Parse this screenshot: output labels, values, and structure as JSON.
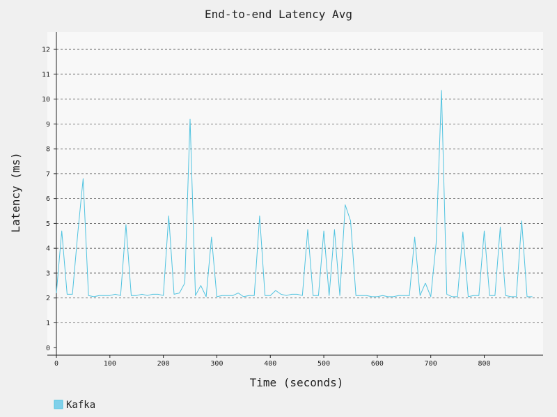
{
  "chart_data": {
    "type": "line",
    "title": "End-to-end Latency Avg",
    "xlabel": "Time (seconds)",
    "ylabel": "Latency (ms)",
    "xlim": [
      0,
      910
    ],
    "ylim": [
      -0.3,
      12.7
    ],
    "x_ticks": [
      0,
      100,
      200,
      300,
      400,
      500,
      600,
      700,
      800
    ],
    "y_ticks": [
      0,
      1,
      2,
      3,
      4,
      5,
      6,
      7,
      8,
      9,
      10,
      11,
      12
    ],
    "grid": true,
    "legend_position": "bottom-left",
    "series": [
      {
        "name": "Kafka",
        "color": "#4fc3e0",
        "x": [
          0,
          10,
          20,
          30,
          40,
          50,
          60,
          70,
          80,
          90,
          100,
          110,
          120,
          130,
          140,
          150,
          160,
          170,
          180,
          190,
          200,
          210,
          220,
          230,
          240,
          250,
          260,
          270,
          280,
          290,
          300,
          310,
          320,
          330,
          340,
          350,
          360,
          370,
          380,
          390,
          400,
          410,
          420,
          430,
          440,
          450,
          460,
          470,
          480,
          490,
          500,
          510,
          520,
          530,
          540,
          550,
          560,
          570,
          580,
          590,
          600,
          610,
          620,
          630,
          640,
          650,
          660,
          670,
          680,
          690,
          700,
          710,
          720,
          730,
          740,
          750,
          760,
          770,
          780,
          790,
          800,
          810,
          820,
          830,
          840,
          850,
          860,
          870,
          880,
          890
        ],
        "values": [
          2.2,
          4.7,
          2.15,
          2.15,
          4.6,
          6.8,
          2.1,
          2.05,
          2.1,
          2.1,
          2.1,
          2.15,
          2.1,
          4.95,
          2.1,
          2.1,
          2.15,
          2.1,
          2.15,
          2.15,
          2.1,
          5.3,
          2.15,
          2.2,
          2.6,
          9.2,
          2.1,
          2.5,
          2.05,
          4.45,
          2.05,
          2.1,
          2.1,
          2.1,
          2.2,
          2.05,
          2.1,
          2.1,
          5.3,
          2.1,
          2.1,
          2.3,
          2.15,
          2.1,
          2.15,
          2.15,
          2.1,
          4.75,
          2.1,
          2.1,
          4.7,
          2.1,
          4.75,
          2.1,
          5.75,
          5.1,
          2.1,
          2.1,
          2.1,
          2.05,
          2.05,
          2.1,
          2.05,
          2.05,
          2.1,
          2.1,
          2.1,
          4.45,
          2.1,
          2.6,
          2.05,
          4.2,
          10.35,
          2.15,
          2.05,
          2.05,
          4.65,
          2.05,
          2.1,
          2.1,
          4.7,
          2.1,
          2.1,
          4.85,
          2.1,
          2.05,
          2.05,
          5.1,
          2.05,
          2.05
        ]
      }
    ]
  }
}
